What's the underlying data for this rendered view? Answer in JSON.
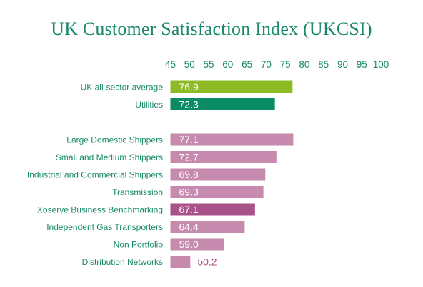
{
  "chart_data": {
    "type": "bar",
    "orientation": "horizontal",
    "title": "UK Customer Satisfaction Index (UKCSI)",
    "xlim": [
      45,
      100
    ],
    "xticks": [
      "45",
      "50",
      "55",
      "60",
      "65",
      "70",
      "75",
      "80",
      "85",
      "90",
      "95",
      "100"
    ],
    "axis_position": "top",
    "grid": false,
    "categories": [
      "UK all-sector average",
      "Utilities",
      "Large Domestic Shippers",
      "Small and Medium Shippers",
      "Industrial and Commercial Shippers",
      "Transmission",
      "Xoserve Business Benchmarking",
      "Independent Gas Transporters",
      "Non Portfolio",
      "Distribution Networks"
    ],
    "values": [
      76.9,
      72.3,
      77.1,
      72.7,
      69.8,
      69.3,
      67.1,
      64.4,
      59.0,
      50.2
    ],
    "value_labels": [
      "76.9",
      "72.3",
      "77.1",
      "72.7",
      "69.8",
      "69.3",
      "67.1",
      "64.4",
      "59.0",
      "50.2"
    ],
    "bar_colors": [
      "#8dbb25",
      "#0b8a66",
      "#c68aaf",
      "#c68aaf",
      "#c68aaf",
      "#c68aaf",
      "#a9528a",
      "#c68aaf",
      "#c68aaf",
      "#c68aaf"
    ],
    "group_gap_after_index": 1,
    "label_color": "#17896a",
    "title_color": "#17896a"
  }
}
